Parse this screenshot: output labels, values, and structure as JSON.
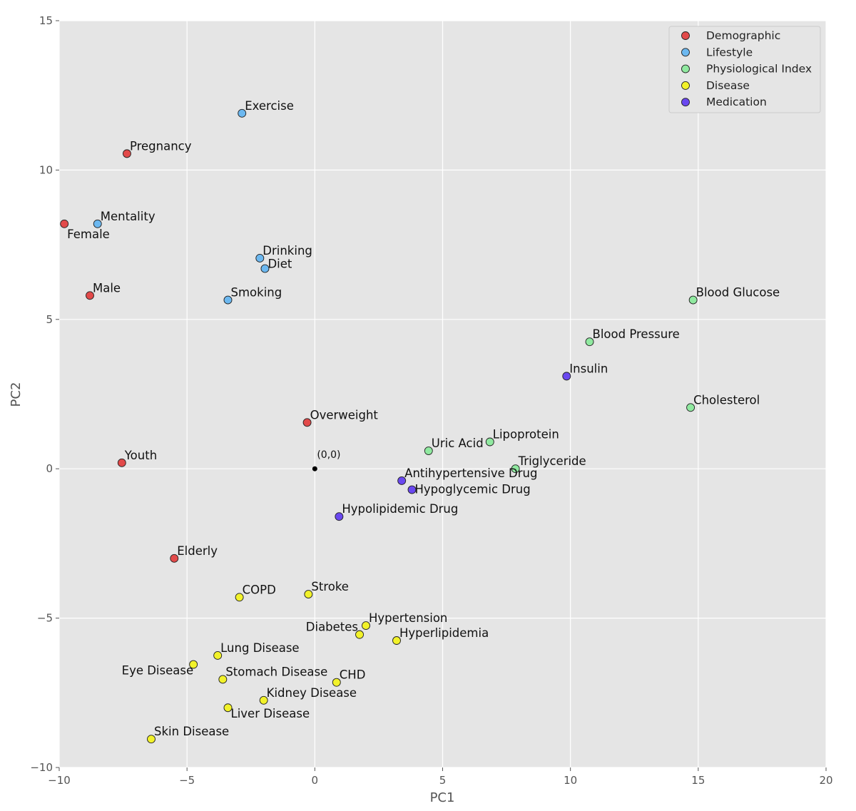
{
  "chart_data": {
    "type": "scatter",
    "title": "",
    "xlabel": "PC1",
    "ylabel": "PC2",
    "xlim": [
      -10,
      20
    ],
    "ylim": [
      -10,
      15
    ],
    "xticks": [
      -10,
      -5,
      0,
      5,
      10,
      15,
      20
    ],
    "yticks": [
      -10,
      -5,
      0,
      5,
      10,
      15
    ],
    "xtick_labels": [
      "−10",
      "−5",
      "0",
      "5",
      "10",
      "15",
      "20"
    ],
    "ytick_labels": [
      "−10",
      "−5",
      "0",
      "5",
      "10",
      "15"
    ],
    "grid": true,
    "legend_position": "top-right",
    "origin_marker": {
      "x": 0,
      "y": 0,
      "label": "(0,0)"
    },
    "categories": [
      {
        "name": "Demographic",
        "color": "#e24a4a"
      },
      {
        "name": "Lifestyle",
        "color": "#6cb8f0"
      },
      {
        "name": "Physiological Index",
        "color": "#90e9a0"
      },
      {
        "name": "Disease",
        "color": "#f2f22a"
      },
      {
        "name": "Medication",
        "color": "#6a48f0"
      }
    ],
    "points": [
      {
        "label": "Female",
        "category": "Demographic",
        "x": -9.8,
        "y": 8.2
      },
      {
        "label": "Male",
        "category": "Demographic",
        "x": -8.8,
        "y": 5.8
      },
      {
        "label": "Pregnancy",
        "category": "Demographic",
        "x": -7.35,
        "y": 10.55
      },
      {
        "label": "Youth",
        "category": "Demographic",
        "x": -7.55,
        "y": 0.2
      },
      {
        "label": "Elderly",
        "category": "Demographic",
        "x": -5.5,
        "y": -3.0
      },
      {
        "label": "Overweight",
        "category": "Demographic",
        "x": -0.3,
        "y": 1.55
      },
      {
        "label": "Mentality",
        "category": "Lifestyle",
        "x": -8.5,
        "y": 8.2
      },
      {
        "label": "Exercise",
        "category": "Lifestyle",
        "x": -2.85,
        "y": 11.9
      },
      {
        "label": "Drinking",
        "category": "Lifestyle",
        "x": -2.15,
        "y": 7.05
      },
      {
        "label": "Diet",
        "category": "Lifestyle",
        "x": -1.95,
        "y": 6.7
      },
      {
        "label": "Smoking",
        "category": "Lifestyle",
        "x": -3.4,
        "y": 5.65
      },
      {
        "label": "Blood Glucose",
        "category": "Physiological Index",
        "x": 14.8,
        "y": 5.65
      },
      {
        "label": "Blood Pressure",
        "category": "Physiological Index",
        "x": 10.75,
        "y": 4.25
      },
      {
        "label": "Cholesterol",
        "category": "Physiological Index",
        "x": 14.7,
        "y": 2.05
      },
      {
        "label": "Lipoprotein",
        "category": "Physiological Index",
        "x": 6.85,
        "y": 0.9
      },
      {
        "label": "Uric Acid",
        "category": "Physiological Index",
        "x": 4.45,
        "y": 0.6
      },
      {
        "label": "Triglyceride",
        "category": "Physiological Index",
        "x": 7.85,
        "y": 0.0
      },
      {
        "label": "Insulin",
        "category": "Medication",
        "x": 9.85,
        "y": 3.1
      },
      {
        "label": "Antihypertensive Drug",
        "category": "Medication",
        "x": 3.4,
        "y": -0.4
      },
      {
        "label": "Hypoglycemic Drug",
        "category": "Medication",
        "x": 3.8,
        "y": -0.7
      },
      {
        "label": "Hypolipidemic Drug",
        "category": "Medication",
        "x": 0.95,
        "y": -1.6
      },
      {
        "label": "COPD",
        "category": "Disease",
        "x": -2.95,
        "y": -4.3
      },
      {
        "label": "Stroke",
        "category": "Disease",
        "x": -0.25,
        "y": -4.2
      },
      {
        "label": "Hypertension",
        "category": "Disease",
        "x": 2.0,
        "y": -5.25
      },
      {
        "label": "Diabetes",
        "category": "Disease",
        "x": 1.75,
        "y": -5.55
      },
      {
        "label": "Hyperlipidemia",
        "category": "Disease",
        "x": 3.2,
        "y": -5.75
      },
      {
        "label": "Lung Disease",
        "category": "Disease",
        "x": -3.8,
        "y": -6.25
      },
      {
        "label": "Eye Disease",
        "category": "Disease",
        "x": -4.75,
        "y": -6.55
      },
      {
        "label": "Stomach Disease",
        "category": "Disease",
        "x": -3.6,
        "y": -7.05
      },
      {
        "label": "CHD",
        "category": "Disease",
        "x": 0.85,
        "y": -7.15
      },
      {
        "label": "Kidney Disease",
        "category": "Disease",
        "x": -2.0,
        "y": -7.75
      },
      {
        "label": "Liver Disease",
        "category": "Disease",
        "x": -3.4,
        "y": -8.0
      },
      {
        "label": "Skin Disease",
        "category": "Disease",
        "x": -6.4,
        "y": -9.05
      }
    ]
  }
}
